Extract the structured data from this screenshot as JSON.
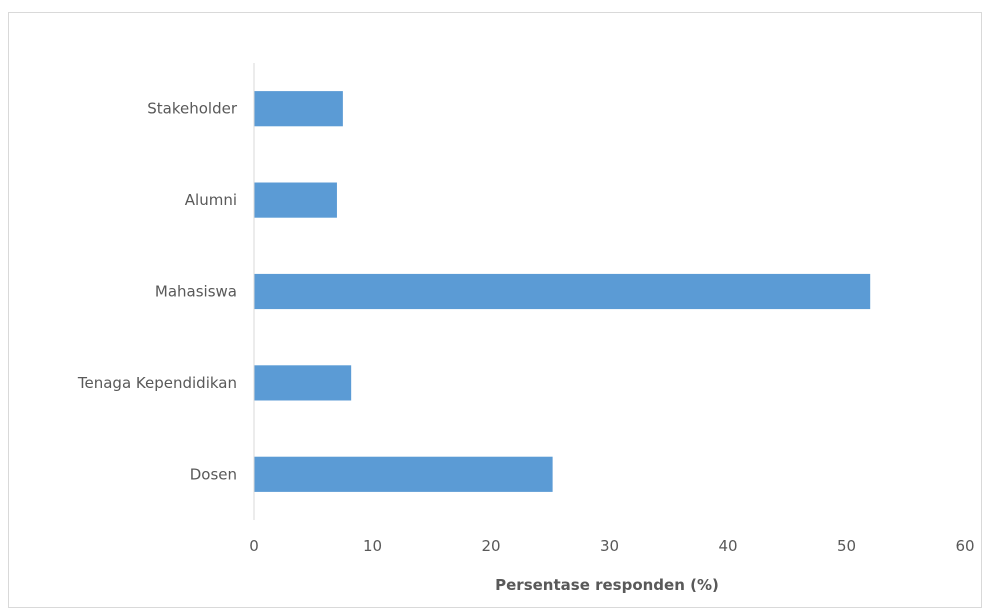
{
  "chart_data": {
    "type": "bar",
    "orientation": "horizontal",
    "categories": [
      "Stakeholder",
      "Alumni",
      "Mahasiswa",
      "Tenaga Kependidikan",
      "Dosen"
    ],
    "values": [
      7.5,
      7,
      52,
      8.2,
      25.2
    ],
    "xlabel": "Persentase responden (%)",
    "ylabel": "",
    "xlim": [
      0,
      60
    ],
    "xticks": [
      "0",
      "10",
      "20",
      "30",
      "40",
      "50",
      "60"
    ],
    "grid": false,
    "legend": "none",
    "bar_color": "#5b9bd5"
  }
}
